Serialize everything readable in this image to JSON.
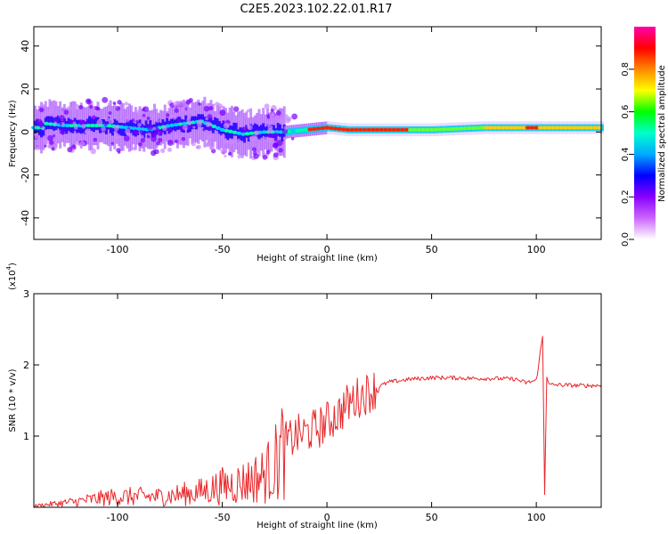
{
  "title": "C2E5.2023.102.22.01.R17",
  "chart_data": [
    {
      "type": "heatmap",
      "xlabel": "Height of straight line (km)",
      "ylabel": "Frequency (Hz)",
      "xlim": [
        -140,
        131
      ],
      "ylim": [
        -50,
        49
      ],
      "xticks": [
        -100,
        -50,
        0,
        50,
        100
      ],
      "yticks": [
        -40,
        -20,
        0,
        20,
        40
      ],
      "colorbar": {
        "label": "Normalized spectral amplitude",
        "range": [
          0,
          1
        ],
        "ticks": [
          "0.0",
          "0.2",
          "0.4",
          "0.6",
          "0.8"
        ],
        "colors": [
          "#ffffff",
          "#cc66ff",
          "#8800ff",
          "#0000ff",
          "#00aaff",
          "#00ffcc",
          "#00ff00",
          "#ffff00",
          "#ff8800",
          "#ff0000",
          "#ff00aa"
        ]
      },
      "ridge": [
        {
          "x": -135,
          "y": 4
        },
        {
          "x": -125,
          "y": 3
        },
        {
          "x": -115,
          "y": 3
        },
        {
          "x": -105,
          "y": 3
        },
        {
          "x": -95,
          "y": 2
        },
        {
          "x": -85,
          "y": 1
        },
        {
          "x": -75,
          "y": 3
        },
        {
          "x": -60,
          "y": 5
        },
        {
          "x": -50,
          "y": 1
        },
        {
          "x": -40,
          "y": -1
        },
        {
          "x": -30,
          "y": 0
        },
        {
          "x": -20,
          "y": 0
        },
        {
          "x": -10,
          "y": 1
        },
        {
          "x": 0,
          "y": 2
        },
        {
          "x": 10,
          "y": 1
        },
        {
          "x": 25,
          "y": 1
        },
        {
          "x": 50,
          "y": 1
        },
        {
          "x": 75,
          "y": 2
        },
        {
          "x": 100,
          "y": 2
        },
        {
          "x": 131,
          "y": 2
        }
      ]
    },
    {
      "type": "line",
      "xlabel": "Height of straight line (km)",
      "ylabel": "SNR (10 * v/v)",
      "yscale_label": "(x10",
      "yscale_exp": "4",
      "yscale_close": ")",
      "xlim": [
        -140,
        131
      ],
      "ylim": [
        0,
        3
      ],
      "xticks": [
        -100,
        -50,
        0,
        50,
        100
      ],
      "yticks": [
        1,
        2,
        3
      ],
      "color": "#e8272a",
      "series": [
        {
          "x": [
            -140,
            -130,
            -120,
            -110,
            -100,
            -90,
            -80,
            -70,
            -60,
            -50,
            -40,
            -35,
            -30,
            -25,
            -20,
            -15,
            -10,
            -5,
            0,
            5,
            10,
            15,
            20,
            25,
            30,
            40,
            50,
            60,
            70,
            80,
            90,
            95,
            100,
            103,
            104,
            105,
            106,
            110,
            120,
            131
          ],
          "y": [
            0.02,
            0.05,
            0.08,
            0.12,
            0.15,
            0.15,
            0.15,
            0.18,
            0.22,
            0.3,
            0.35,
            0.4,
            0.45,
            0.6,
            0.9,
            1.0,
            1.05,
            1.1,
            1.2,
            1.3,
            1.45,
            1.55,
            1.62,
            1.7,
            1.76,
            1.8,
            1.82,
            1.82,
            1.81,
            1.81,
            1.8,
            1.75,
            1.78,
            2.4,
            0.2,
            1.85,
            1.72,
            1.72,
            1.71,
            1.71
          ]
        }
      ]
    }
  ]
}
